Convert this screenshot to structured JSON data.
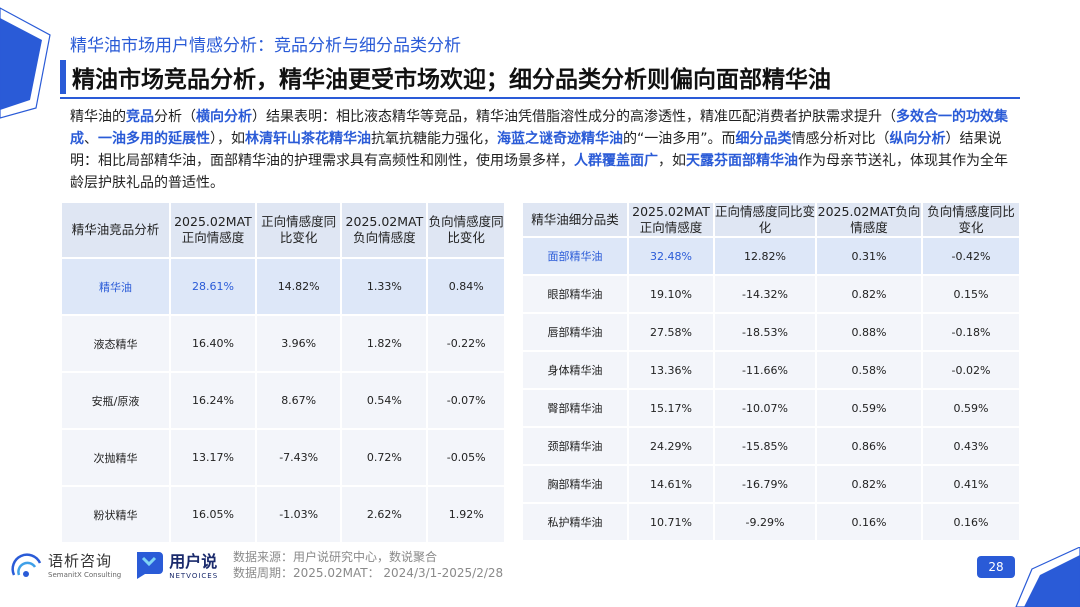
{
  "header": {
    "subtitle": "精华油市场用户情感分析：竞品分析与细分品类分析",
    "title": "精油市场竞品分析，精华油更受市场欢迎；细分品类分析则偏向面部精华油"
  },
  "intro": {
    "t1": "精华油的",
    "h1": "竞品",
    "t2": "分析（",
    "h2": "横向分析",
    "t3": "）结果表明：相比液态精华等竞品，精华油凭借脂溶性成分的高渗透性，精准匹配消费者护肤需求提升（",
    "h3": "多效合一的功效集成",
    "t4": "、",
    "h4": "一油多用的延展性",
    "t5": "），如",
    "h5": "林清轩山茶花精华油",
    "t6": "抗氧抗糖能力强化，",
    "h6": "海蓝之谜奇迹精华油",
    "t7": "的“一油多用”。而",
    "h7": "细分品类",
    "t8": "情感分析对比（",
    "h8": "纵向分析",
    "t9": "）结果说明：相比局部精华油，面部精华油的护理需求具有高频性和刚性，使用场景多样，",
    "h9": "人群覆盖面广",
    "t10": "，如",
    "h10": "天露芬面部精华油",
    "t11": "作为母亲节送礼，体现其作为全年龄层护肤礼品的普适性。"
  },
  "table_left": {
    "headers": [
      "精华油竞品分析",
      "2025.02MAT正向情感度",
      "正向情感度同比变化",
      "2025.02MAT负向情感度",
      "负向情感度同比变化"
    ],
    "rows": [
      [
        "精华油",
        "28.61%",
        "14.82%",
        "1.33%",
        "0.84%"
      ],
      [
        "液态精华",
        "16.40%",
        "3.96%",
        "1.82%",
        "-0.22%"
      ],
      [
        "安瓶/原液",
        "16.24%",
        "8.67%",
        "0.54%",
        "-0.07%"
      ],
      [
        "次抛精华",
        "13.17%",
        "-7.43%",
        "0.72%",
        "-0.05%"
      ],
      [
        "粉状精华",
        "16.05%",
        "-1.03%",
        "2.62%",
        "1.92%"
      ]
    ]
  },
  "table_right": {
    "headers": [
      "精华油细分品类",
      "2025.02MAT正向情感度",
      "正向情感度同比变化",
      "2025.02MAT负向情感度",
      "负向情感度同比变化"
    ],
    "rows": [
      [
        "面部精华油",
        "32.48%",
        "12.82%",
        "0.31%",
        "-0.42%"
      ],
      [
        "眼部精华油",
        "19.10%",
        "-14.32%",
        "0.82%",
        "0.15%"
      ],
      [
        "唇部精华油",
        "27.58%",
        "-18.53%",
        "0.88%",
        "-0.18%"
      ],
      [
        "身体精华油",
        "13.36%",
        "-11.66%",
        "0.58%",
        "-0.02%"
      ],
      [
        "臀部精华油",
        "15.17%",
        "-10.07%",
        "0.59%",
        "0.59%"
      ],
      [
        "颈部精华油",
        "24.29%",
        "-15.85%",
        "0.86%",
        "0.43%"
      ],
      [
        "胸部精华油",
        "14.61%",
        "-16.79%",
        "0.82%",
        "0.41%"
      ],
      [
        "私护精华油",
        "10.71%",
        "-9.29%",
        "0.16%",
        "0.16%"
      ]
    ]
  },
  "footer": {
    "logo1_cn": "语析咨询",
    "logo1_en": "SemanitX Consulting",
    "logo2_cn": "用户说",
    "logo2_en": "NETVOICES",
    "source_line1": "数据来源：用户说研究中心，数说聚合",
    "source_line2": "数据周期：2025.02MAT： 2024/3/1-2025/2/28",
    "page_number": "28"
  },
  "colors": {
    "accent": "#2a5bd7",
    "header_cell": "#dfe6f3",
    "body_cell": "#f3f5fa"
  }
}
